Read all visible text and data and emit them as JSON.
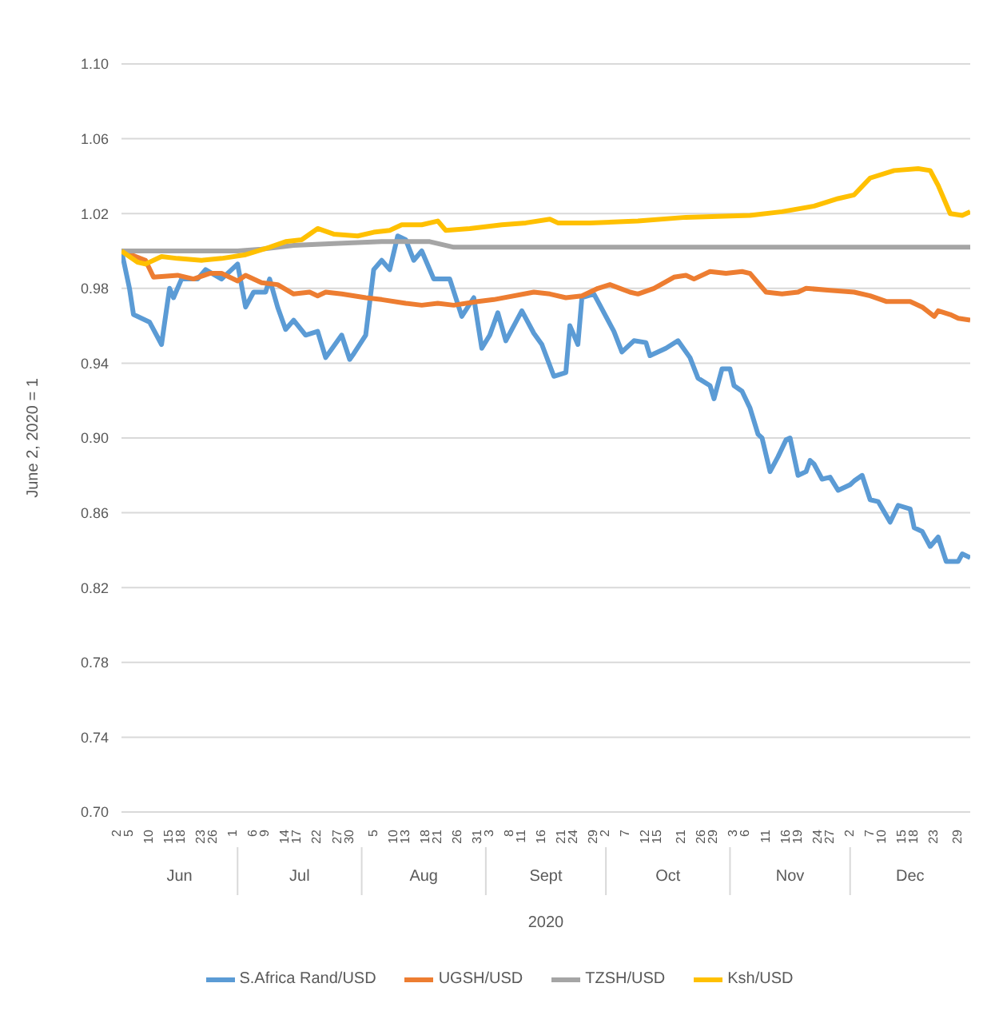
{
  "chart_data": {
    "type": "line",
    "ylabel": "June 2, 2020 = 1",
    "xlabel": "2020",
    "xlim": [
      "2020-06-02",
      "2020-12-31"
    ],
    "xticks": [
      {
        "value": "2020-06-02",
        "label": "2"
      },
      {
        "value": "2020-06-05",
        "label": "5"
      },
      {
        "value": "2020-06-10",
        "label": "10"
      },
      {
        "value": "2020-06-15",
        "label": "15"
      },
      {
        "value": "2020-06-18",
        "label": "18"
      },
      {
        "value": "2020-06-23",
        "label": "23"
      },
      {
        "value": "2020-06-26",
        "label": "26"
      },
      {
        "value": "2020-07-01",
        "label": "1"
      },
      {
        "value": "2020-07-06",
        "label": "6"
      },
      {
        "value": "2020-07-09",
        "label": "9"
      },
      {
        "value": "2020-07-14",
        "label": "14"
      },
      {
        "value": "2020-07-17",
        "label": "17"
      },
      {
        "value": "2020-07-22",
        "label": "22"
      },
      {
        "value": "2020-07-27",
        "label": "27"
      },
      {
        "value": "2020-07-30",
        "label": "30"
      },
      {
        "value": "2020-08-05",
        "label": "5"
      },
      {
        "value": "2020-08-10",
        "label": "10"
      },
      {
        "value": "2020-08-13",
        "label": "13"
      },
      {
        "value": "2020-08-18",
        "label": "18"
      },
      {
        "value": "2020-08-21",
        "label": "21"
      },
      {
        "value": "2020-08-26",
        "label": "26"
      },
      {
        "value": "2020-08-31",
        "label": "31"
      },
      {
        "value": "2020-09-03",
        "label": "3"
      },
      {
        "value": "2020-09-08",
        "label": "8"
      },
      {
        "value": "2020-09-11",
        "label": "11"
      },
      {
        "value": "2020-09-16",
        "label": "16"
      },
      {
        "value": "2020-09-21",
        "label": "21"
      },
      {
        "value": "2020-09-24",
        "label": "24"
      },
      {
        "value": "2020-09-29",
        "label": "29"
      },
      {
        "value": "2020-10-02",
        "label": "2"
      },
      {
        "value": "2020-10-07",
        "label": "7"
      },
      {
        "value": "2020-10-12",
        "label": "12"
      },
      {
        "value": "2020-10-15",
        "label": "15"
      },
      {
        "value": "2020-10-21",
        "label": "21"
      },
      {
        "value": "2020-10-26",
        "label": "26"
      },
      {
        "value": "2020-10-29",
        "label": "29"
      },
      {
        "value": "2020-11-03",
        "label": "3"
      },
      {
        "value": "2020-11-06",
        "label": "6"
      },
      {
        "value": "2020-11-11",
        "label": "11"
      },
      {
        "value": "2020-11-16",
        "label": "16"
      },
      {
        "value": "2020-11-19",
        "label": "19"
      },
      {
        "value": "2020-11-24",
        "label": "24"
      },
      {
        "value": "2020-11-27",
        "label": "27"
      },
      {
        "value": "2020-12-02",
        "label": "2"
      },
      {
        "value": "2020-12-07",
        "label": "7"
      },
      {
        "value": "2020-12-10",
        "label": "10"
      },
      {
        "value": "2020-12-15",
        "label": "15"
      },
      {
        "value": "2020-12-18",
        "label": "18"
      },
      {
        "value": "2020-12-23",
        "label": "23"
      },
      {
        "value": "2020-12-29",
        "label": "29"
      }
    ],
    "ylim": [
      0.7,
      1.1
    ],
    "yticks": [
      {
        "value": 0.7,
        "label": "0.70"
      },
      {
        "value": 0.74,
        "label": "0.74"
      },
      {
        "value": 0.78,
        "label": "0.78"
      },
      {
        "value": 0.82,
        "label": "0.82"
      },
      {
        "value": 0.86,
        "label": "0.86"
      },
      {
        "value": 0.9,
        "label": "0.90"
      },
      {
        "value": 0.94,
        "label": "0.94"
      },
      {
        "value": 0.98,
        "label": "0.98"
      },
      {
        "value": 1.02,
        "label": "1.02"
      },
      {
        "value": 1.06,
        "label": "1.06"
      },
      {
        "value": 1.1,
        "label": "1.10"
      }
    ],
    "grid": "y",
    "legend": "bottom",
    "marker": "none",
    "line_style": "solid",
    "annotations": [
      "Jun",
      "Jul",
      "Aug",
      "Sept",
      "Oct",
      "Nov",
      "Dec"
    ],
    "series": [
      {
        "name": "S.Africa Rand/USD",
        "color": "#5b9bd5",
        "x": [
          "2020-06-02",
          "2020-06-04",
          "2020-06-05",
          "2020-06-09",
          "2020-06-12",
          "2020-06-14",
          "2020-06-15",
          "2020-06-17",
          "2020-06-21",
          "2020-06-23",
          "2020-06-27",
          "2020-07-01",
          "2020-07-03",
          "2020-07-05",
          "2020-07-08",
          "2020-07-09",
          "2020-07-11",
          "2020-07-13",
          "2020-07-15",
          "2020-07-18",
          "2020-07-21",
          "2020-07-23",
          "2020-07-27",
          "2020-07-29",
          "2020-07-30",
          "2020-08-02",
          "2020-08-04",
          "2020-08-06",
          "2020-08-08",
          "2020-08-10",
          "2020-08-12",
          "2020-08-14",
          "2020-08-16",
          "2020-08-19",
          "2020-08-23",
          "2020-08-26",
          "2020-08-29",
          "2020-08-31",
          "2020-09-02",
          "2020-09-04",
          "2020-09-06",
          "2020-09-10",
          "2020-09-13",
          "2020-09-15",
          "2020-09-18",
          "2020-09-21",
          "2020-09-22",
          "2020-09-24",
          "2020-09-25",
          "2020-09-28",
          "2020-09-29",
          "2020-10-03",
          "2020-10-05",
          "2020-10-08",
          "2020-10-11",
          "2020-10-12",
          "2020-10-16",
          "2020-10-19",
          "2020-10-22",
          "2020-10-24",
          "2020-10-27",
          "2020-10-28",
          "2020-10-30",
          "2020-11-01",
          "2020-11-02",
          "2020-11-04",
          "2020-11-06",
          "2020-11-08",
          "2020-11-09",
          "2020-11-11",
          "2020-11-13",
          "2020-11-15",
          "2020-11-16",
          "2020-11-18",
          "2020-11-20",
          "2020-11-21",
          "2020-11-22",
          "2020-11-24",
          "2020-11-26",
          "2020-11-28",
          "2020-12-01",
          "2020-12-02",
          "2020-12-04",
          "2020-12-06",
          "2020-12-08",
          "2020-12-11",
          "2020-12-13",
          "2020-12-16",
          "2020-12-17",
          "2020-12-19",
          "2020-12-21",
          "2020-12-23",
          "2020-12-25",
          "2020-12-28",
          "2020-12-29",
          "2020-12-31"
        ],
        "values": [
          1.0,
          0.98,
          0.966,
          0.962,
          0.95,
          0.98,
          0.975,
          0.985,
          0.985,
          0.99,
          0.985,
          0.993,
          0.97,
          0.978,
          0.978,
          0.985,
          0.97,
          0.958,
          0.963,
          0.955,
          0.957,
          0.943,
          0.955,
          0.942,
          0.945,
          0.955,
          0.99,
          0.995,
          0.99,
          1.008,
          1.006,
          0.995,
          1.0,
          0.985,
          0.985,
          0.965,
          0.975,
          0.948,
          0.955,
          0.967,
          0.952,
          0.968,
          0.956,
          0.95,
          0.933,
          0.935,
          0.96,
          0.95,
          0.975,
          0.977,
          0.973,
          0.957,
          0.946,
          0.952,
          0.951,
          0.944,
          0.948,
          0.952,
          0.943,
          0.932,
          0.928,
          0.921,
          0.937,
          0.937,
          0.928,
          0.925,
          0.916,
          0.902,
          0.9,
          0.882,
          0.89,
          0.899,
          0.9,
          0.88,
          0.882,
          0.888,
          0.886,
          0.878,
          0.879,
          0.872,
          0.875,
          0.877,
          0.88,
          0.867,
          0.866,
          0.855,
          0.864,
          0.862,
          0.852,
          0.85,
          0.842,
          0.847,
          0.834,
          0.834,
          0.838,
          0.836
        ]
      },
      {
        "name": "UGSH/USD",
        "color": "#ed7d31",
        "x": [
          "2020-06-02",
          "2020-06-08",
          "2020-06-10",
          "2020-06-16",
          "2020-06-20",
          "2020-06-24",
          "2020-06-27",
          "2020-07-01",
          "2020-07-03",
          "2020-07-07",
          "2020-07-11",
          "2020-07-15",
          "2020-07-19",
          "2020-07-21",
          "2020-07-23",
          "2020-07-27",
          "2020-08-02",
          "2020-08-06",
          "2020-08-12",
          "2020-08-16",
          "2020-08-20",
          "2020-08-24",
          "2020-08-30",
          "2020-09-03",
          "2020-09-13",
          "2020-09-17",
          "2020-09-21",
          "2020-09-25",
          "2020-09-29",
          "2020-10-02",
          "2020-10-07",
          "2020-10-09",
          "2020-10-13",
          "2020-10-18",
          "2020-10-21",
          "2020-10-23",
          "2020-10-27",
          "2020-10-31",
          "2020-11-04",
          "2020-11-06",
          "2020-11-10",
          "2020-11-14",
          "2020-11-18",
          "2020-11-20",
          "2020-11-26",
          "2020-12-02",
          "2020-12-06",
          "2020-12-10",
          "2020-12-16",
          "2020-12-19",
          "2020-12-22",
          "2020-12-23",
          "2020-12-26",
          "2020-12-28",
          "2020-12-31"
        ],
        "values": [
          1.0,
          0.995,
          0.986,
          0.987,
          0.985,
          0.988,
          0.988,
          0.984,
          0.987,
          0.983,
          0.982,
          0.977,
          0.978,
          0.976,
          0.978,
          0.977,
          0.975,
          0.974,
          0.972,
          0.971,
          0.972,
          0.971,
          0.973,
          0.974,
          0.978,
          0.977,
          0.975,
          0.976,
          0.98,
          0.982,
          0.978,
          0.977,
          0.98,
          0.986,
          0.987,
          0.985,
          0.989,
          0.988,
          0.989,
          0.988,
          0.978,
          0.977,
          0.978,
          0.98,
          0.979,
          0.978,
          0.976,
          0.973,
          0.973,
          0.97,
          0.965,
          0.968,
          0.966,
          0.964,
          0.963
        ]
      },
      {
        "name": "TZSH/USD",
        "color": "#a5a5a5",
        "x": [
          "2020-06-02",
          "2020-07-01",
          "2020-07-07",
          "2020-07-15",
          "2020-07-25",
          "2020-08-06",
          "2020-08-18",
          "2020-08-24",
          "2020-10-01",
          "2020-11-15",
          "2020-12-31"
        ],
        "values": [
          1.0,
          1.0,
          1.001,
          1.003,
          1.004,
          1.005,
          1.005,
          1.002,
          1.002,
          1.002,
          1.002
        ]
      },
      {
        "name": "Ksh/USD",
        "color": "#ffc000",
        "x": [
          "2020-06-02",
          "2020-06-06",
          "2020-06-08",
          "2020-06-12",
          "2020-06-16",
          "2020-06-22",
          "2020-06-27",
          "2020-07-03",
          "2020-07-09",
          "2020-07-13",
          "2020-07-17",
          "2020-07-21",
          "2020-07-25",
          "2020-07-31",
          "2020-08-04",
          "2020-08-08",
          "2020-08-11",
          "2020-08-16",
          "2020-08-20",
          "2020-08-22",
          "2020-08-28",
          "2020-09-05",
          "2020-09-11",
          "2020-09-17",
          "2020-09-19",
          "2020-09-27",
          "2020-10-09",
          "2020-10-21",
          "2020-11-06",
          "2020-11-14",
          "2020-11-22",
          "2020-11-28",
          "2020-12-02",
          "2020-12-06",
          "2020-12-12",
          "2020-12-18",
          "2020-12-21",
          "2020-12-23",
          "2020-12-26",
          "2020-12-29",
          "2020-12-31"
        ],
        "values": [
          1.0,
          0.994,
          0.993,
          0.997,
          0.996,
          0.995,
          0.996,
          0.998,
          1.002,
          1.005,
          1.006,
          1.012,
          1.009,
          1.008,
          1.01,
          1.011,
          1.014,
          1.014,
          1.016,
          1.011,
          1.012,
          1.014,
          1.015,
          1.017,
          1.015,
          1.015,
          1.016,
          1.018,
          1.019,
          1.021,
          1.024,
          1.028,
          1.03,
          1.039,
          1.043,
          1.044,
          1.043,
          1.035,
          1.02,
          1.019,
          1.021
        ]
      }
    ]
  }
}
